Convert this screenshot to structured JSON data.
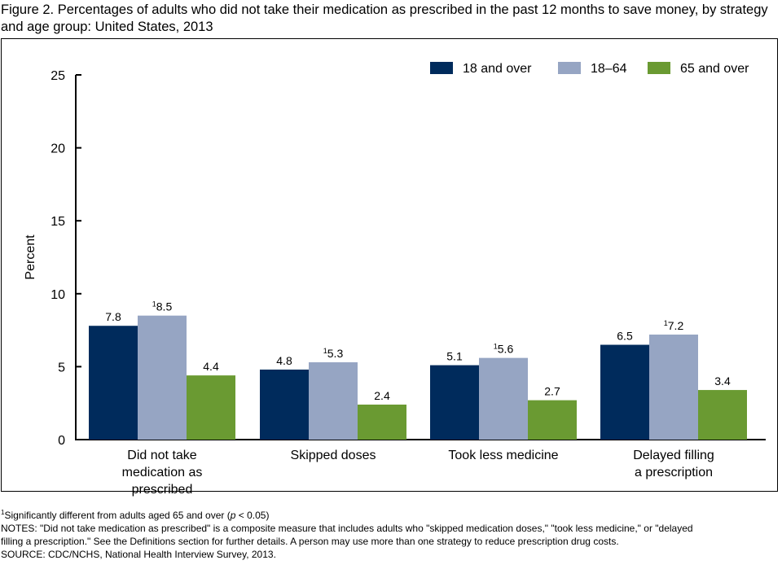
{
  "title": "Figure 2. Percentages of adults who did not take their medication as prescribed in the past 12 months to save money, by strategy and age group: United States, 2013",
  "chart_data": {
    "type": "bar",
    "title": "Figure 2. Percentages of adults who did not take their medication as prescribed in the past 12 months to save money, by strategy and age group: United States, 2013",
    "xlabel": "",
    "ylabel": "Percent",
    "ylim": [
      0,
      25
    ],
    "yticks": [
      0,
      5,
      10,
      15,
      20,
      25
    ],
    "grid": false,
    "legend_position": "top-right",
    "categories": [
      [
        "Did not take",
        "medication as",
        "prescribed"
      ],
      [
        "Skipped doses"
      ],
      [
        "Took less medicine"
      ],
      [
        "Delayed filling",
        "a prescription"
      ]
    ],
    "series": [
      {
        "name": "18 and over",
        "color": "#002B5C",
        "values": [
          7.8,
          4.8,
          5.1,
          6.5
        ],
        "labels": [
          "7.8",
          "4.8",
          "5.1",
          "6.5"
        ],
        "footnote": [
          false,
          false,
          false,
          false
        ]
      },
      {
        "name": "18–64",
        "color": "#96A5C3",
        "values": [
          8.5,
          5.3,
          5.6,
          7.2
        ],
        "labels": [
          "8.5",
          "5.3",
          "5.6",
          "7.2"
        ],
        "footnote": [
          true,
          true,
          true,
          true
        ]
      },
      {
        "name": "65 and over",
        "color": "#6A9A32",
        "values": [
          4.4,
          2.4,
          2.7,
          3.4
        ],
        "labels": [
          "4.4",
          "2.4",
          "2.7",
          "3.4"
        ],
        "footnote": [
          false,
          false,
          false,
          false
        ]
      }
    ],
    "footnote_marker": "1"
  },
  "notes": {
    "footnote_marker": "1",
    "footnote_text_a": "Significantly different from adults aged 65 and over (",
    "footnote_p": "p",
    "footnote_text_b": " < 0.05)",
    "notes_line1": "NOTES: \"Did not take medication as prescribed\" is a composite measure that includes adults who \"skipped medication doses,\" \"took less medicine,\" or \"delayed",
    "notes_line2": "filling a prescription.\" See the Definitions section for further details. A person may use more than one strategy to reduce prescription drug costs.",
    "source": "SOURCE: CDC/NCHS, National Health Interview Survey, 2013."
  }
}
